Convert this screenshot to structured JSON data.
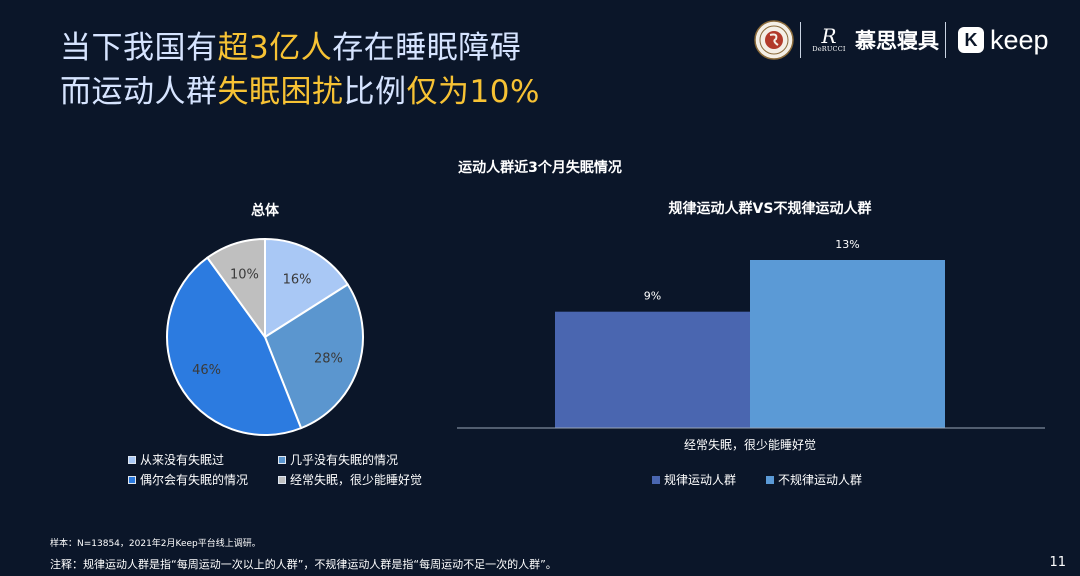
{
  "headline": {
    "line1": [
      "当下我国有",
      "超3亿人",
      "存在睡眠障碍"
    ],
    "line2": [
      "而运动人群",
      "失眠困扰",
      "比例",
      "仅为10%"
    ]
  },
  "brand": {
    "derucci_mark": "R",
    "derucci_text": "DeRUCCI",
    "cn_name": "慕思寝具",
    "keep_letter": "K",
    "keep_word": "keep"
  },
  "colors": {
    "background": "#0b1629",
    "highlight": "#f7c234",
    "headline": "#d6e4ff",
    "slice1": "#a9c8f5",
    "slice2": "#5b96cf",
    "slice3": "#2c7be0",
    "slice4": "#bfbfbf",
    "bar_regular": "#4a66b0",
    "bar_irregular": "#5b9ad6"
  },
  "chart_data": [
    {
      "type": "pie",
      "title": "运动人群近3个月失眠情况",
      "subtitle": "总体",
      "slices": [
        {
          "label": "从来没有失眠过",
          "value": 16,
          "display": "16%"
        },
        {
          "label": "几乎没有失眠的情况",
          "value": 28,
          "display": "28%"
        },
        {
          "label": "偶尔会有失眠的情况",
          "value": 46,
          "display": "46%"
        },
        {
          "label": "经常失眠，很少能睡好觉",
          "value": 10,
          "display": "10%"
        }
      ],
      "legend_placement": "bottom"
    },
    {
      "type": "bar",
      "title": "规律运动人群VS不规律运动人群",
      "categories": [
        "经常失眠，很少能睡好觉"
      ],
      "series": [
        {
          "name": "规律运动人群",
          "values": [
            9
          ],
          "display": [
            "9%"
          ]
        },
        {
          "name": "不规律运动人群",
          "values": [
            13
          ],
          "display": [
            "13%"
          ]
        }
      ],
      "ylim": [
        0,
        13
      ],
      "grid": false,
      "legend_placement": "bottom"
    }
  ],
  "footnotes": {
    "sample": "样本：N=13854，2021年2月Keep平台线上调研。",
    "note": "注释：规律运动人群是指“每周运动一次以上的人群”，不规律运动人群是指“每周运动不足一次的人群”。"
  },
  "page_number": "11"
}
